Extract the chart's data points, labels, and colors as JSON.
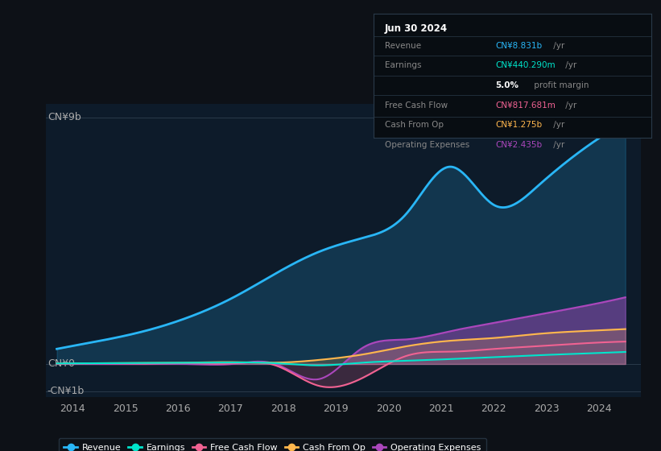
{
  "bg_color": "#0d1117",
  "plot_bg": "#0d1b2a",
  "ylabel_top": "CN¥9b",
  "ylabel_zero": "CN¥0",
  "ylabel_neg": "-CN¥1b",
  "revenue": [
    0.55,
    0.85,
    1.2,
    1.7,
    2.4,
    3.3,
    4.1,
    4.6,
    5.5,
    7.2,
    5.8,
    6.5,
    7.8,
    8.831
  ],
  "earnings": [
    0.02,
    0.03,
    0.04,
    0.05,
    0.06,
    0.03,
    -0.05,
    0.05,
    0.12,
    0.18,
    0.25,
    0.32,
    0.38,
    0.44
  ],
  "free_cash_flow": [
    0.01,
    0.02,
    0.01,
    0.03,
    0.02,
    -0.05,
    -0.8,
    -0.5,
    0.3,
    0.45,
    0.55,
    0.65,
    0.75,
    0.818
  ],
  "cash_from_op": [
    0.02,
    0.03,
    0.04,
    0.05,
    0.07,
    0.05,
    0.15,
    0.35,
    0.65,
    0.85,
    0.95,
    1.1,
    1.2,
    1.275
  ],
  "operating_expenses": [
    0.0,
    0.0,
    0.0,
    0.0,
    0.0,
    0.0,
    -0.55,
    0.6,
    0.9,
    1.2,
    1.5,
    1.8,
    2.1,
    2.435
  ],
  "colors": {
    "revenue": "#29b6f6",
    "earnings": "#00e5cc",
    "free_cash_flow": "#f06292",
    "cash_from_op": "#ffb74d",
    "operating_expenses": "#ab47bc"
  },
  "info_box": {
    "date": "Jun 30 2024",
    "revenue_val": "CN¥8.831b",
    "earnings_val": "CN¥440.290m",
    "earnings_margin": "5.0%",
    "fcf_val": "CN¥817.681m",
    "cash_op_val": "CN¥1.275b",
    "op_exp_val": "CN¥2.435b"
  },
  "legend_labels": [
    "Revenue",
    "Earnings",
    "Free Cash Flow",
    "Cash From Op",
    "Operating Expenses"
  ],
  "xticks": [
    2014,
    2015,
    2016,
    2017,
    2018,
    2019,
    2020,
    2021,
    2022,
    2023,
    2024
  ]
}
